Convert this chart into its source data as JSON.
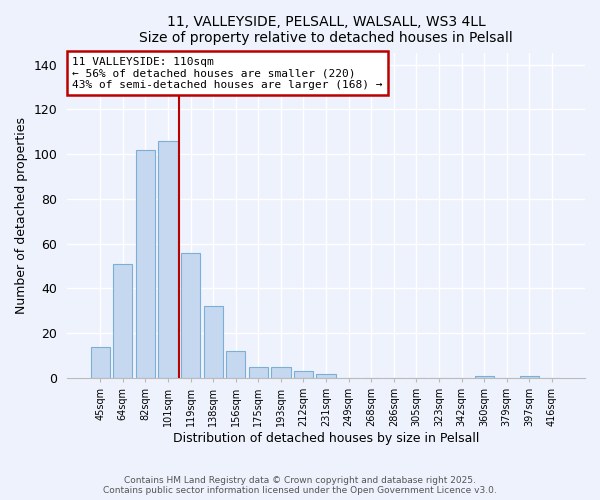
{
  "title": "11, VALLEYSIDE, PELSALL, WALSALL, WS3 4LL",
  "subtitle": "Size of property relative to detached houses in Pelsall",
  "xlabel": "Distribution of detached houses by size in Pelsall",
  "ylabel": "Number of detached properties",
  "categories": [
    "45sqm",
    "64sqm",
    "82sqm",
    "101sqm",
    "119sqm",
    "138sqm",
    "156sqm",
    "175sqm",
    "193sqm",
    "212sqm",
    "231sqm",
    "249sqm",
    "268sqm",
    "286sqm",
    "305sqm",
    "323sqm",
    "342sqm",
    "360sqm",
    "379sqm",
    "397sqm",
    "416sqm"
  ],
  "values": [
    14,
    51,
    102,
    106,
    56,
    32,
    12,
    5,
    5,
    3,
    2,
    0,
    0,
    0,
    0,
    0,
    0,
    1,
    0,
    1,
    0
  ],
  "bar_color": "#c5d8f0",
  "bar_edge_color": "#7bafd4",
  "annotation_title": "11 VALLEYSIDE: 110sqm",
  "annotation_line1": "← 56% of detached houses are smaller (220)",
  "annotation_line2": "43% of semi-detached houses are larger (168) →",
  "annotation_box_color": "#ffffff",
  "annotation_box_edge_color": "#bb0000",
  "marker_line_color": "#bb0000",
  "ylim": [
    0,
    145
  ],
  "yticks": [
    0,
    20,
    40,
    60,
    80,
    100,
    120,
    140
  ],
  "footer1": "Contains HM Land Registry data © Crown copyright and database right 2025.",
  "footer2": "Contains public sector information licensed under the Open Government Licence v3.0.",
  "bg_color": "#eef2fc",
  "grid_color": "#ffffff"
}
